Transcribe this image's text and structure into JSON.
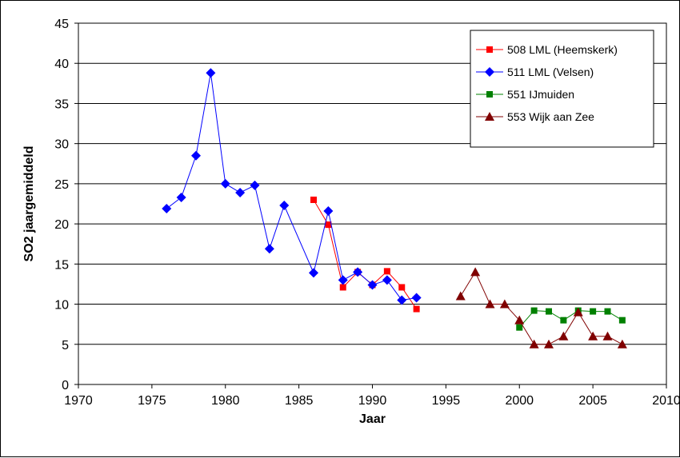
{
  "chart_data": {
    "type": "line",
    "title": "",
    "xlabel": "Jaar",
    "ylabel": "SO2 jaargemiddeld",
    "xlim": [
      1970,
      2010
    ],
    "ylim": [
      0,
      45
    ],
    "xticks": [
      1970,
      1975,
      1980,
      1985,
      1990,
      1995,
      2000,
      2005,
      2010
    ],
    "yticks": [
      0,
      5,
      10,
      15,
      20,
      25,
      30,
      35,
      40,
      45
    ],
    "grid": "horizontal",
    "legend_position": "top-right",
    "series": [
      {
        "name": "508 LML (Heemskerk)",
        "color": "#ff0000",
        "marker": "square",
        "x": [
          1986,
          1987,
          1988,
          1989,
          1990,
          1991,
          1992,
          1993
        ],
        "y": [
          23.0,
          19.9,
          12.1,
          14.0,
          12.4,
          14.1,
          12.1,
          9.4
        ]
      },
      {
        "name": "511 LML (Velsen)",
        "color": "#0000ff",
        "marker": "diamond",
        "x": [
          1976,
          1977,
          1978,
          1979,
          1980,
          1981,
          1982,
          1983,
          1984,
          1986,
          1987,
          1988,
          1989,
          1990,
          1991,
          1992,
          1993
        ],
        "y": [
          21.9,
          23.3,
          28.5,
          38.8,
          25.0,
          23.9,
          24.8,
          16.9,
          22.3,
          13.9,
          21.6,
          13.0,
          14.0,
          12.4,
          13.0,
          10.5,
          10.8
        ]
      },
      {
        "name": "551 IJmuiden",
        "color": "#008000",
        "marker": "square",
        "x": [
          2000,
          2001,
          2002,
          2003,
          2004,
          2005,
          2006,
          2007
        ],
        "y": [
          7.1,
          9.2,
          9.1,
          8.0,
          9.2,
          9.1,
          9.1,
          8.0
        ]
      },
      {
        "name": "553 Wijk aan Zee",
        "color": "#800000",
        "marker": "triangle",
        "x": [
          1996,
          1997,
          1998,
          1999,
          2000,
          2001,
          2002,
          2003,
          2004,
          2005,
          2006,
          2007
        ],
        "y": [
          11.0,
          14.0,
          10.0,
          10.0,
          8.0,
          5.0,
          5.0,
          6.0,
          9.0,
          6.0,
          6.0,
          5.0
        ]
      }
    ]
  }
}
